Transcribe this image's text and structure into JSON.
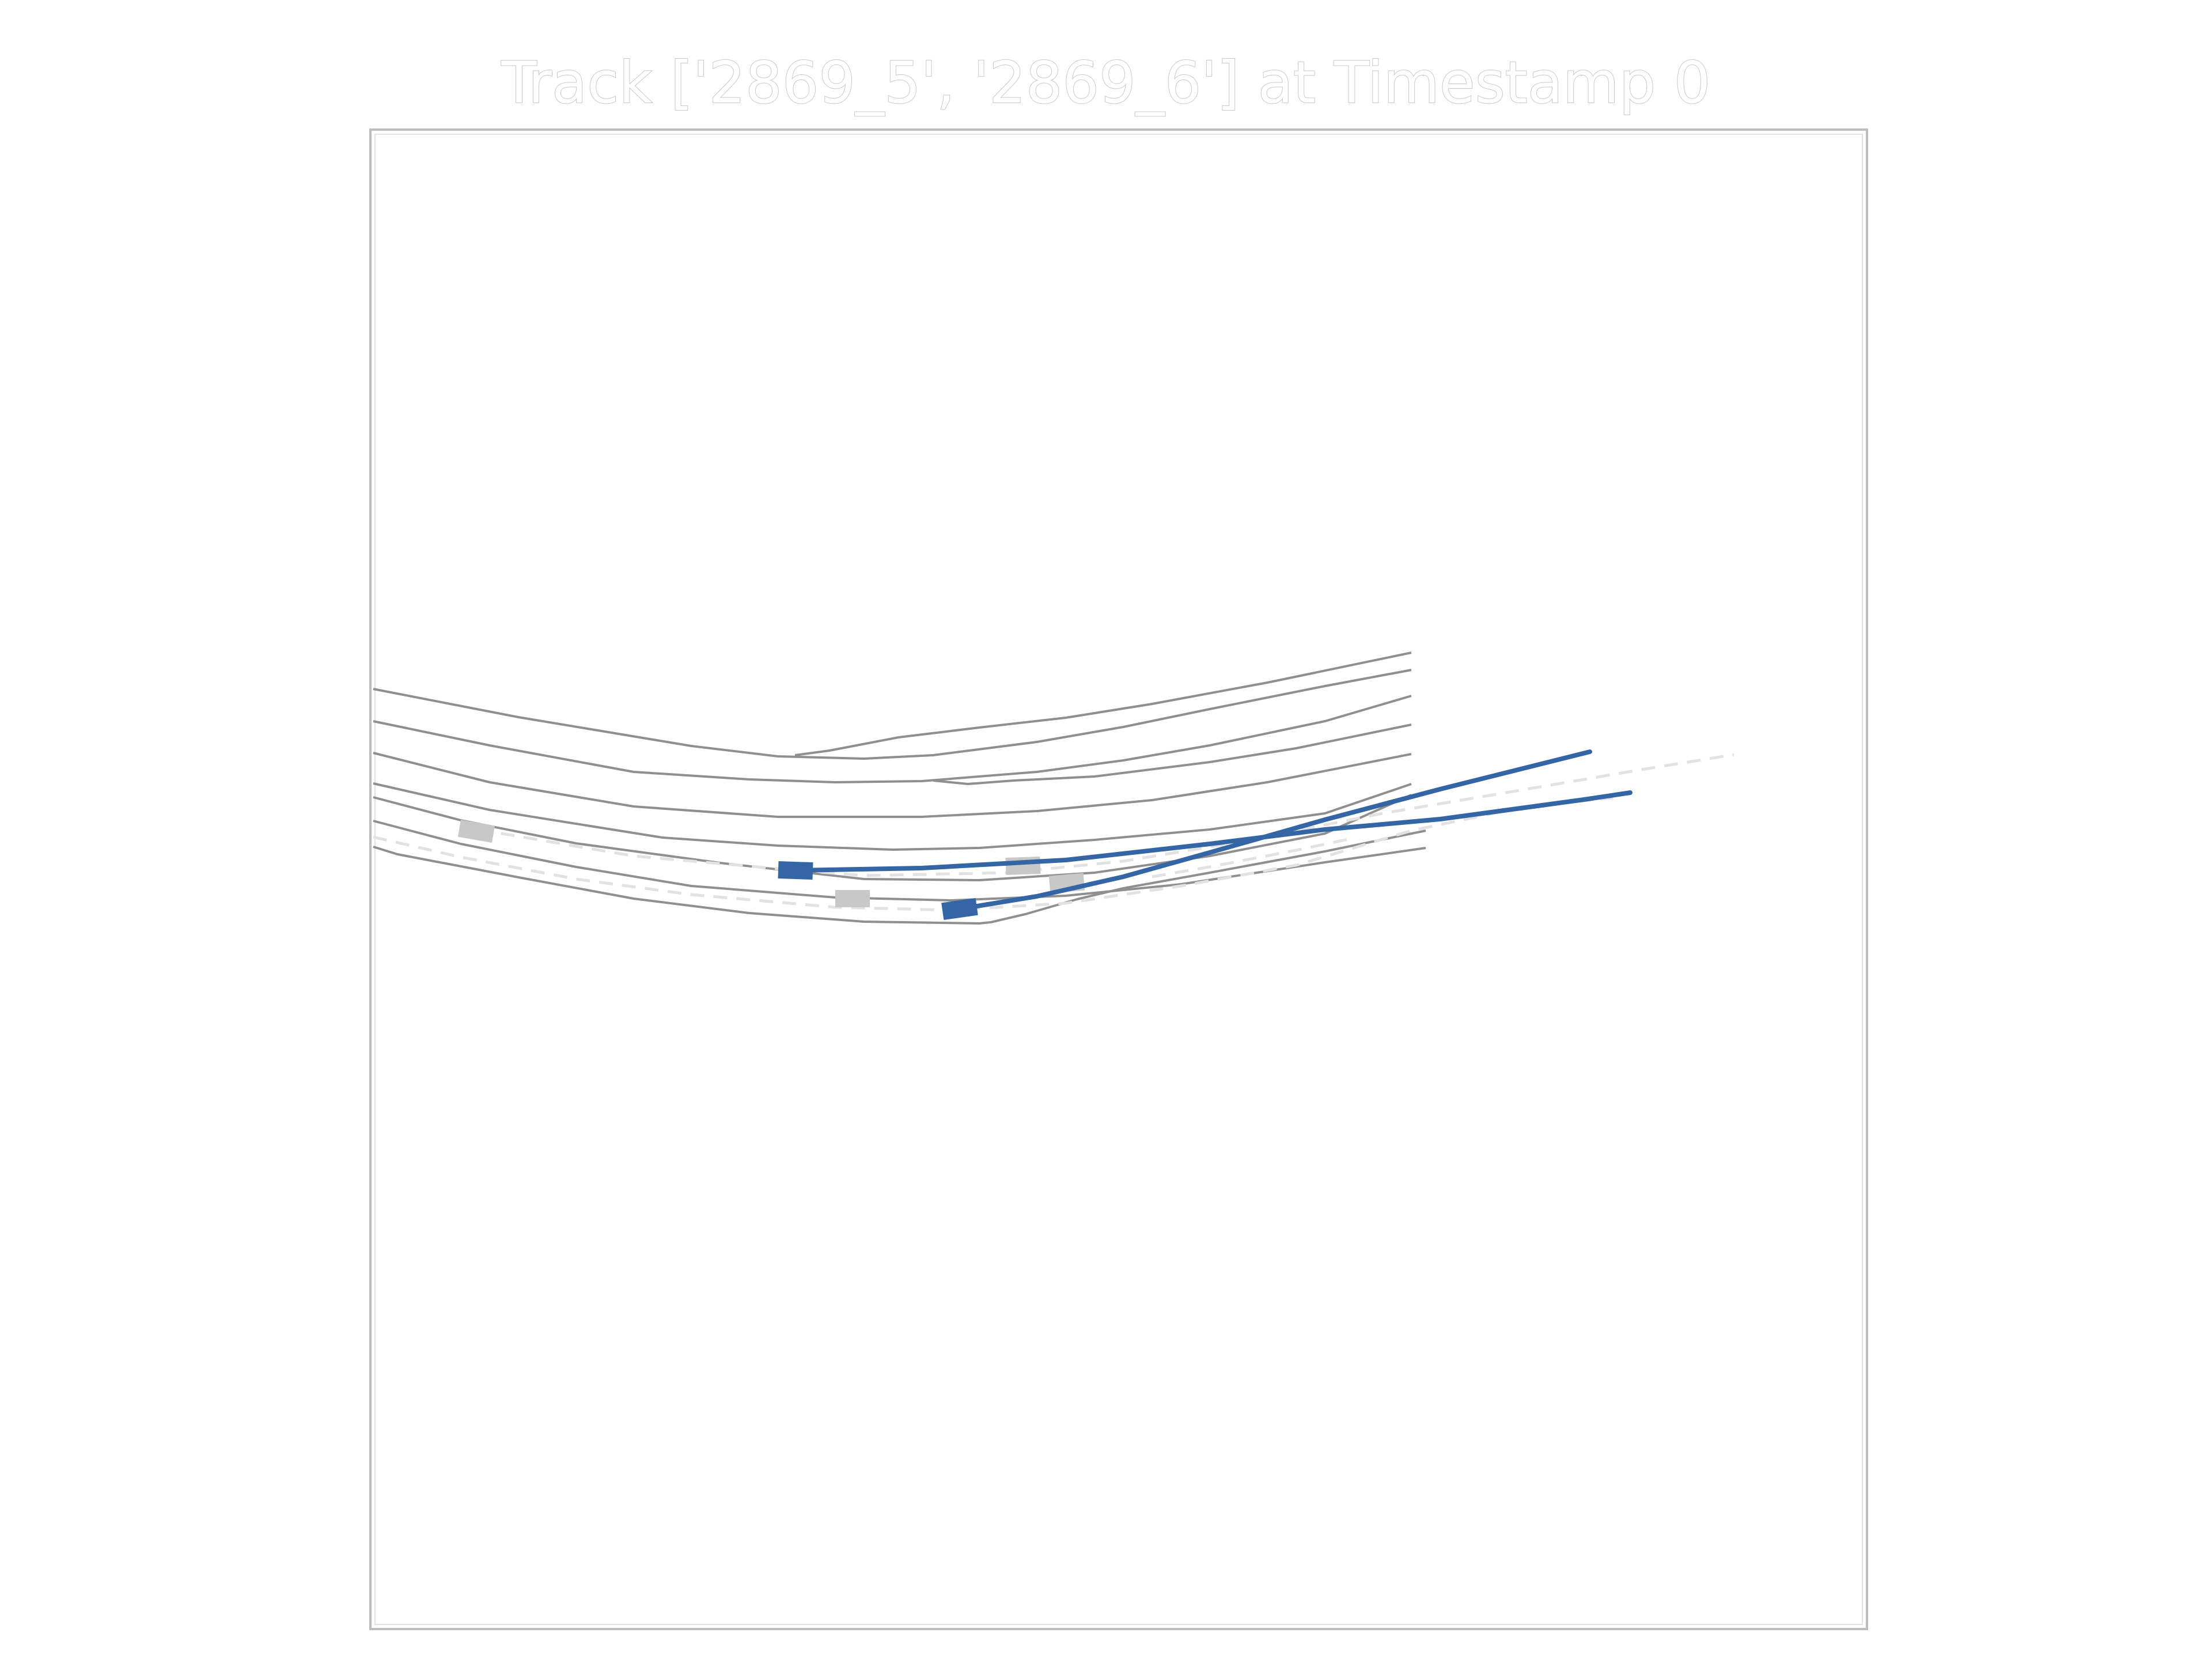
{
  "title": "Track ['2869_5', '2869_6'] at Timestamp 0",
  "colors": {
    "background": "#ffffff",
    "frame": "#bdbdbd",
    "lane_boundary": "#8f8f8f",
    "centerline": "#e2e2e2",
    "tracked_vehicle": "#3465a4",
    "other_vehicle": "#c8c8c8"
  },
  "tracked_vehicles": [
    {
      "id": "2869_5"
    },
    {
      "id": "2869_6"
    }
  ],
  "other_vehicles_count": 4
}
